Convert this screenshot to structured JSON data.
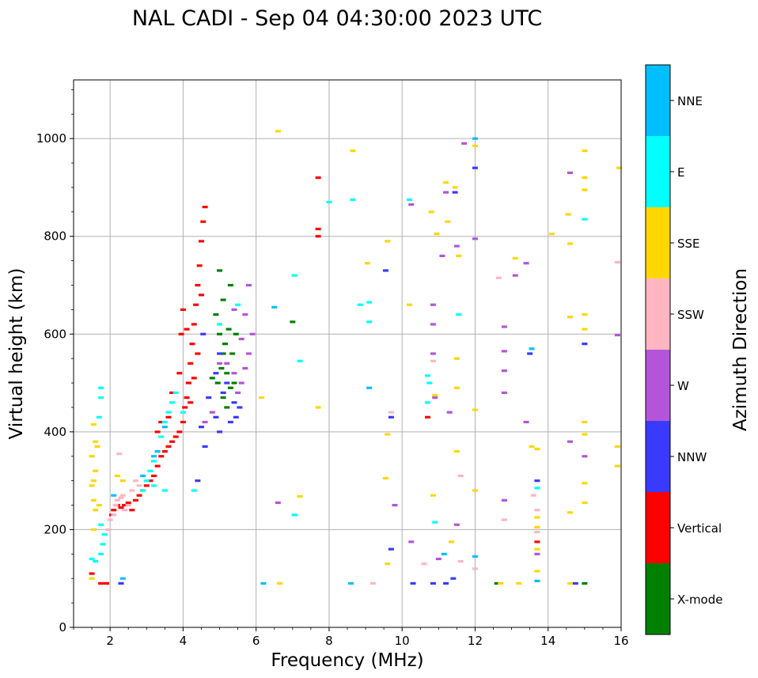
{
  "chart_data": {
    "type": "scatter",
    "title": "NAL CADI - Sep 04 04:30:00 2023 UTC",
    "xlabel": "Frequency (MHz)",
    "ylabel": "Virtual height (km)",
    "xlim": [
      1,
      16
    ],
    "ylim": [
      0,
      1120
    ],
    "xticks": [
      2,
      4,
      6,
      8,
      10,
      12,
      14,
      16
    ],
    "yticks": [
      0,
      200,
      400,
      600,
      800,
      1000
    ],
    "grid": true,
    "colorbar": {
      "label": "Azimuth Direction",
      "position": "right",
      "categories": [
        {
          "name": "X-mode",
          "color": "#008000"
        },
        {
          "name": "Vertical",
          "color": "#ff0000"
        },
        {
          "name": "NNW",
          "color": "#3a3aff"
        },
        {
          "name": "W",
          "color": "#b455d9"
        },
        {
          "name": "SSW",
          "color": "#ffb6c1"
        },
        {
          "name": "SSE",
          "color": "#ffd700"
        },
        {
          "name": "E",
          "color": "#00ffff"
        },
        {
          "name": "NNE",
          "color": "#00bfff"
        }
      ]
    },
    "series": [
      {
        "name": "Vertical",
        "points": [
          [
            1.5,
            110
          ],
          [
            1.75,
            90
          ],
          [
            1.9,
            90
          ],
          [
            2.05,
            230
          ],
          [
            2.1,
            240
          ],
          [
            2.2,
            250
          ],
          [
            2.3,
            245
          ],
          [
            2.4,
            250
          ],
          [
            2.5,
            255
          ],
          [
            2.6,
            240
          ],
          [
            2.7,
            260
          ],
          [
            2.8,
            270
          ],
          [
            2.9,
            280
          ],
          [
            3.0,
            290
          ],
          [
            3.1,
            300
          ],
          [
            3.2,
            310
          ],
          [
            3.3,
            330
          ],
          [
            3.4,
            350
          ],
          [
            3.5,
            360
          ],
          [
            3.6,
            370
          ],
          [
            3.7,
            380
          ],
          [
            3.8,
            390
          ],
          [
            3.9,
            400
          ],
          [
            4.0,
            420
          ],
          [
            4.05,
            450
          ],
          [
            4.1,
            470
          ],
          [
            4.15,
            500
          ],
          [
            4.2,
            540
          ],
          [
            4.25,
            580
          ],
          [
            4.3,
            620
          ],
          [
            4.35,
            660
          ],
          [
            4.4,
            700
          ],
          [
            4.45,
            740
          ],
          [
            4.5,
            790
          ],
          [
            4.55,
            830
          ],
          [
            4.6,
            860
          ],
          [
            4.0,
            650
          ],
          [
            3.95,
            600
          ],
          [
            4.1,
            610
          ],
          [
            4.5,
            680
          ],
          [
            4.4,
            560
          ],
          [
            3.7,
            480
          ],
          [
            3.9,
            520
          ],
          [
            3.6,
            430
          ],
          [
            3.4,
            420
          ],
          [
            3.3,
            400
          ],
          [
            4.2,
            460
          ],
          [
            4.3,
            510
          ],
          [
            7.7,
            920
          ],
          [
            7.7,
            815
          ],
          [
            7.7,
            800
          ],
          [
            10.7,
            430
          ],
          [
            13.7,
            175
          ]
        ]
      },
      {
        "name": "X-mode",
        "points": [
          [
            4.9,
            640
          ],
          [
            5.0,
            600
          ],
          [
            5.1,
            560
          ],
          [
            5.2,
            520
          ],
          [
            5.3,
            490
          ],
          [
            5.15,
            580
          ],
          [
            5.05,
            530
          ],
          [
            5.25,
            610
          ],
          [
            5.3,
            700
          ],
          [
            5.0,
            730
          ],
          [
            5.4,
            500
          ],
          [
            5.2,
            450
          ],
          [
            5.1,
            470
          ],
          [
            4.8,
            510
          ],
          [
            4.95,
            500
          ],
          [
            5.1,
            670
          ],
          [
            5.35,
            560
          ],
          [
            5.45,
            600
          ],
          [
            7.0,
            625
          ],
          [
            12.6,
            90
          ],
          [
            15.0,
            90
          ]
        ]
      },
      {
        "name": "NNW",
        "points": [
          [
            2.3,
            90
          ],
          [
            4.6,
            370
          ],
          [
            4.7,
            470
          ],
          [
            4.9,
            430
          ],
          [
            5.0,
            400
          ],
          [
            5.1,
            480
          ],
          [
            5.3,
            420
          ],
          [
            5.4,
            460
          ],
          [
            5.2,
            500
          ],
          [
            5.45,
            430
          ],
          [
            5.55,
            450
          ],
          [
            5.0,
            560
          ],
          [
            4.9,
            520
          ],
          [
            4.5,
            410
          ],
          [
            4.4,
            300
          ],
          [
            4.55,
            600
          ],
          [
            9.55,
            730
          ],
          [
            9.7,
            430
          ],
          [
            9.7,
            160
          ],
          [
            10.3,
            90
          ],
          [
            10.85,
            90
          ],
          [
            11.2,
            90
          ],
          [
            11.45,
            890
          ],
          [
            11.4,
            100
          ],
          [
            12.0,
            940
          ],
          [
            13.5,
            560
          ],
          [
            13.7,
            300
          ],
          [
            15.0,
            580
          ],
          [
            14.75,
            90
          ]
        ]
      },
      {
        "name": "W",
        "points": [
          [
            4.6,
            420
          ],
          [
            4.8,
            440
          ],
          [
            5.0,
            540
          ],
          [
            5.2,
            540
          ],
          [
            5.4,
            520
          ],
          [
            5.5,
            480
          ],
          [
            5.6,
            500
          ],
          [
            5.7,
            530
          ],
          [
            5.8,
            560
          ],
          [
            5.6,
            590
          ],
          [
            5.9,
            600
          ],
          [
            5.7,
            640
          ],
          [
            5.8,
            700
          ],
          [
            5.4,
            650
          ],
          [
            6.6,
            255
          ],
          [
            9.8,
            250
          ],
          [
            10.25,
            175
          ],
          [
            10.25,
            865
          ],
          [
            10.85,
            620
          ],
          [
            10.85,
            560
          ],
          [
            10.85,
            660
          ],
          [
            10.9,
            470
          ],
          [
            11.1,
            760
          ],
          [
            11.2,
            890
          ],
          [
            11.5,
            780
          ],
          [
            11.5,
            210
          ],
          [
            11.3,
            440
          ],
          [
            11.0,
            140
          ],
          [
            12.0,
            795
          ],
          [
            12.8,
            480
          ],
          [
            12.8,
            525
          ],
          [
            12.8,
            565
          ],
          [
            12.8,
            615
          ],
          [
            12.8,
            260
          ],
          [
            13.1,
            720
          ],
          [
            13.4,
            420
          ],
          [
            13.4,
            745
          ],
          [
            13.7,
            150
          ],
          [
            14.6,
            380
          ],
          [
            14.6,
            930
          ],
          [
            15.0,
            350
          ],
          [
            15.9,
            598
          ],
          [
            11.7,
            990
          ]
        ]
      },
      {
        "name": "SSW",
        "points": [
          [
            1.95,
            200
          ],
          [
            2.0,
            220
          ],
          [
            2.1,
            230
          ],
          [
            2.15,
            250
          ],
          [
            2.2,
            260
          ],
          [
            2.3,
            265
          ],
          [
            2.35,
            270
          ],
          [
            2.4,
            240
          ],
          [
            2.5,
            250
          ],
          [
            2.25,
            355
          ],
          [
            2.6,
            280
          ],
          [
            2.7,
            300
          ],
          [
            2.8,
            290
          ],
          [
            9.2,
            90
          ],
          [
            9.7,
            440
          ],
          [
            10.6,
            130
          ],
          [
            10.85,
            545
          ],
          [
            11.6,
            310
          ],
          [
            11.6,
            135
          ],
          [
            12.0,
            120
          ],
          [
            12.65,
            715
          ],
          [
            12.8,
            220
          ],
          [
            13.6,
            270
          ],
          [
            13.7,
            240
          ],
          [
            13.7,
            195
          ],
          [
            15.9,
            747
          ]
        ]
      },
      {
        "name": "SSE",
        "points": [
          [
            1.5,
            100
          ],
          [
            1.55,
            200
          ],
          [
            1.55,
            260
          ],
          [
            1.55,
            300
          ],
          [
            1.6,
            320
          ],
          [
            1.5,
            350
          ],
          [
            1.6,
            380
          ],
          [
            1.55,
            415
          ],
          [
            1.65,
            370
          ],
          [
            1.7,
            250
          ],
          [
            1.5,
            290
          ],
          [
            1.6,
            240
          ],
          [
            2.2,
            310
          ],
          [
            2.35,
            300
          ],
          [
            6.15,
            470
          ],
          [
            6.6,
            1015
          ],
          [
            6.65,
            90
          ],
          [
            7.2,
            268
          ],
          [
            7.7,
            450
          ],
          [
            8.65,
            975
          ],
          [
            9.05,
            745
          ],
          [
            9.55,
            305
          ],
          [
            9.6,
            790
          ],
          [
            9.6,
            130
          ],
          [
            9.6,
            395
          ],
          [
            10.2,
            660
          ],
          [
            10.8,
            850
          ],
          [
            10.85,
            270
          ],
          [
            10.9,
            475
          ],
          [
            10.95,
            805
          ],
          [
            11.2,
            910
          ],
          [
            11.25,
            830
          ],
          [
            11.35,
            175
          ],
          [
            11.5,
            360
          ],
          [
            11.5,
            550
          ],
          [
            11.5,
            490
          ],
          [
            11.45,
            900
          ],
          [
            11.55,
            760
          ],
          [
            12.0,
            985
          ],
          [
            12.0,
            445
          ],
          [
            12.0,
            280
          ],
          [
            12.7,
            90
          ],
          [
            13.1,
            755
          ],
          [
            13.2,
            90
          ],
          [
            13.55,
            370
          ],
          [
            13.7,
            365
          ],
          [
            13.7,
            225
          ],
          [
            13.7,
            205
          ],
          [
            13.7,
            160
          ],
          [
            13.7,
            115
          ],
          [
            14.1,
            805
          ],
          [
            14.55,
            845
          ],
          [
            14.6,
            785
          ],
          [
            14.6,
            635
          ],
          [
            14.6,
            235
          ],
          [
            14.6,
            90
          ],
          [
            15.0,
            975
          ],
          [
            15.0,
            920
          ],
          [
            15.0,
            895
          ],
          [
            15.0,
            835
          ],
          [
            15.0,
            640
          ],
          [
            15.0,
            610
          ],
          [
            15.0,
            420
          ],
          [
            15.0,
            395
          ],
          [
            15.0,
            295
          ],
          [
            15.0,
            255
          ],
          [
            15.9,
            370
          ],
          [
            15.9,
            330
          ],
          [
            15.95,
            940
          ]
        ]
      },
      {
        "name": "E",
        "points": [
          [
            1.5,
            140
          ],
          [
            1.6,
            135
          ],
          [
            1.75,
            150
          ],
          [
            1.8,
            170
          ],
          [
            1.85,
            190
          ],
          [
            1.75,
            210
          ],
          [
            1.7,
            430
          ],
          [
            1.75,
            470
          ],
          [
            1.75,
            490
          ],
          [
            2.9,
            280
          ],
          [
            3.0,
            300
          ],
          [
            3.1,
            320
          ],
          [
            3.2,
            340
          ],
          [
            3.3,
            360
          ],
          [
            3.4,
            390
          ],
          [
            3.5,
            420
          ],
          [
            3.6,
            440
          ],
          [
            3.7,
            460
          ],
          [
            3.8,
            480
          ],
          [
            3.5,
            280
          ],
          [
            3.2,
            290
          ],
          [
            4.3,
            280
          ],
          [
            4.0,
            440
          ],
          [
            5.0,
            620
          ],
          [
            5.5,
            660
          ],
          [
            7.05,
            230
          ],
          [
            7.05,
            720
          ],
          [
            7.2,
            545
          ],
          [
            8.0,
            870
          ],
          [
            8.65,
            875
          ],
          [
            8.85,
            660
          ],
          [
            9.1,
            625
          ],
          [
            9.1,
            665
          ],
          [
            10.2,
            875
          ],
          [
            10.7,
            515
          ],
          [
            10.75,
            500
          ],
          [
            10.7,
            460
          ],
          [
            10.9,
            215
          ],
          [
            11.55,
            640
          ],
          [
            13.7,
            285
          ],
          [
            15.0,
            835
          ]
        ]
      },
      {
        "name": "NNE",
        "points": [
          [
            2.35,
            100
          ],
          [
            2.1,
            270
          ],
          [
            2.9,
            310
          ],
          [
            3.2,
            350
          ],
          [
            3.3,
            360
          ],
          [
            3.5,
            410
          ],
          [
            6.2,
            90
          ],
          [
            6.5,
            655
          ],
          [
            9.1,
            490
          ],
          [
            8.6,
            90
          ],
          [
            11.15,
            150
          ],
          [
            12.0,
            145
          ],
          [
            12.0,
            1000
          ],
          [
            13.55,
            570
          ],
          [
            13.7,
            95
          ]
        ]
      }
    ]
  }
}
